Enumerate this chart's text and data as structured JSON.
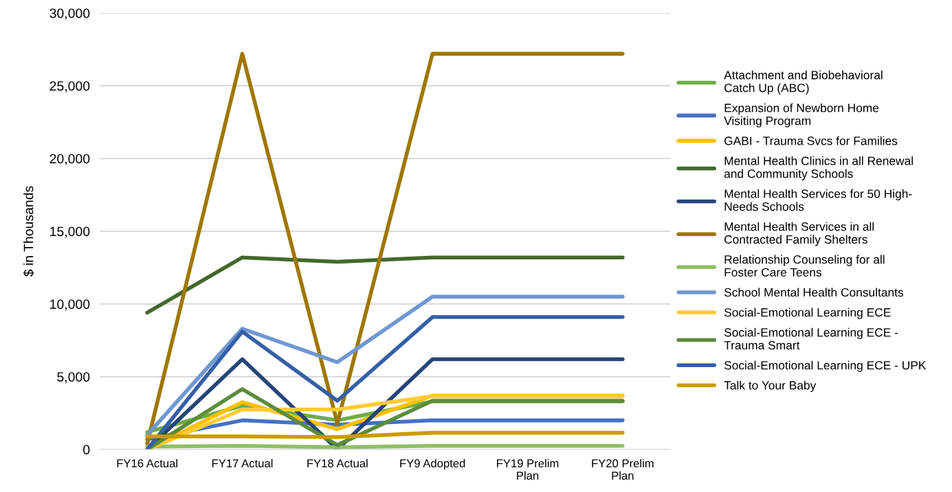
{
  "chart_data": {
    "type": "line",
    "ylabel": "$ in Thousands",
    "categories": [
      "FY16 Actual",
      "FY17 Actual",
      "FY18 Actual",
      "FY9 Adopted",
      "FY19 Prelim\nPlan",
      "FY20 Prelim\nPlan"
    ],
    "ylim": [
      0,
      30000
    ],
    "yticks": [
      {
        "value": 0,
        "label": "0"
      },
      {
        "value": 5000,
        "label": "5,000"
      },
      {
        "value": 10000,
        "label": "10,000"
      },
      {
        "value": 15000,
        "label": "15,000"
      },
      {
        "value": 20000,
        "label": "20,000"
      },
      {
        "value": 25000,
        "label": "25,000"
      },
      {
        "value": 30000,
        "label": "30,000"
      }
    ],
    "grid": "y",
    "legend": "right",
    "marker": "none",
    "line_style": "solid",
    "series": [
      {
        "name": "Attachment and Biobehavioral\nCatch Up (ABC)",
        "color": "#70ad47",
        "values": [
          1200,
          3000,
          2000,
          3300,
          3300,
          3300
        ]
      },
      {
        "name": "Expansion of Newborn Home\nVisiting Program",
        "color": "#4472c4",
        "values": [
          700,
          2000,
          1700,
          2000,
          2000,
          2000
        ]
      },
      {
        "name": "GABI - Trauma Svcs for Families",
        "color": "#ffc000",
        "values": [
          0,
          3250,
          1400,
          3700,
          3700,
          3700
        ]
      },
      {
        "name": "Mental Health Clinics in all Renewal\nand Community Schools",
        "color": "#43682b",
        "values": [
          9400,
          13200,
          12900,
          13200,
          13200,
          13200
        ]
      },
      {
        "name": "Mental Health Services for 50 High-\nNeeds Schools",
        "color": "#264478",
        "values": [
          0,
          6200,
          0,
          6200,
          6200,
          6200
        ]
      },
      {
        "name": "Mental Health Services in all\nContracted Family Shelters",
        "color": "#9e7700",
        "values": [
          400,
          27200,
          1800,
          27200,
          27200,
          27200
        ]
      },
      {
        "name": "Relationship Counseling for all\nFoster Care Teens",
        "color": "#8fbf66",
        "values": [
          200,
          250,
          150,
          250,
          250,
          250
        ]
      },
      {
        "name": "School Mental Health Consultants",
        "color": "#6f97d3",
        "values": [
          1000,
          8300,
          6000,
          10500,
          10500,
          10500
        ]
      },
      {
        "name": "Social-Emotional Learning ECE",
        "color": "#ffcb33",
        "values": [
          0,
          2750,
          2750,
          3650,
          3650,
          3650
        ]
      },
      {
        "name": "Social-Emotional Learning ECE -\nTrauma Smart",
        "color": "#5b8c3b",
        "values": [
          0,
          4150,
          300,
          3350,
          3350,
          3350
        ]
      },
      {
        "name": "Social-Emotional Learning ECE - UPK",
        "color": "#355fa8",
        "values": [
          0,
          8100,
          3350,
          9100,
          9100,
          9100
        ]
      },
      {
        "name": "Talk to Your Baby",
        "color": "#cc9c00",
        "values": [
          900,
          900,
          850,
          1150,
          1150,
          1150
        ]
      }
    ]
  }
}
